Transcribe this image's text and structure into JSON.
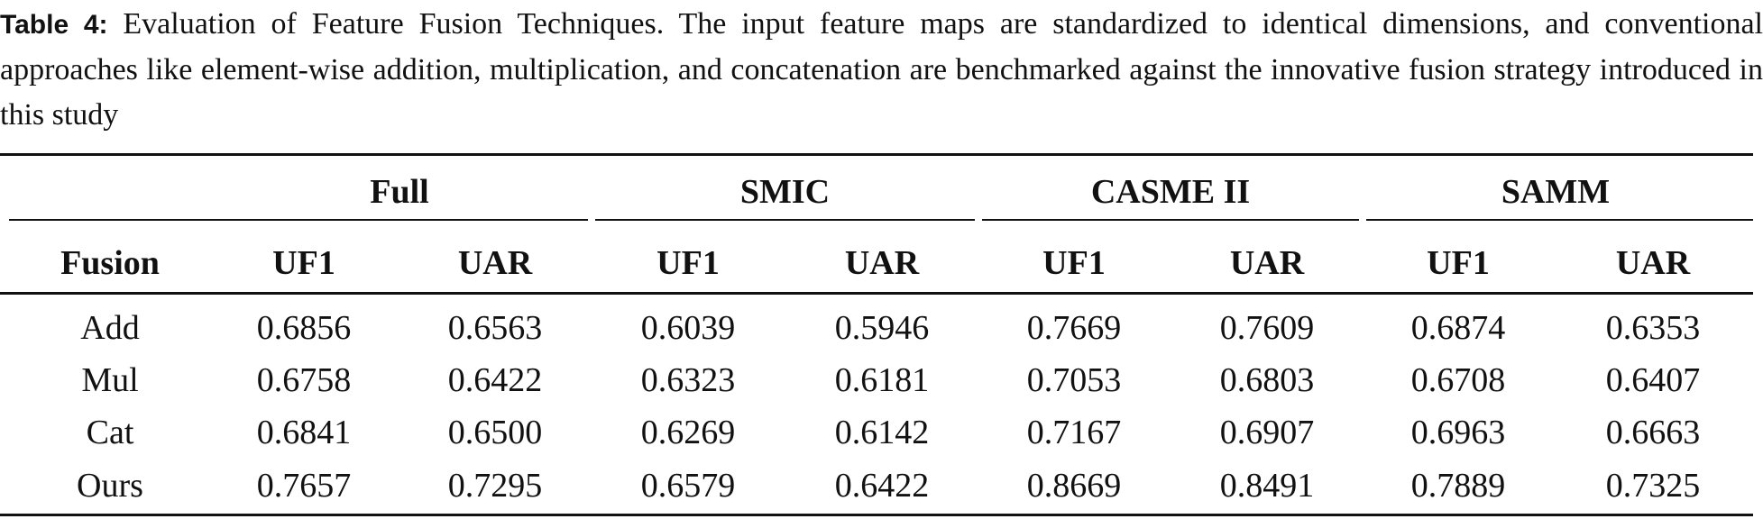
{
  "caption": {
    "label": "Table 4:",
    "text": "Evaluation of Feature Fusion Techniques. The input feature maps are standardized to identical dimensions, and conventional approaches like element-wise addition, multiplication, and concatenation are benchmarked against the innovative fusion strategy introduced in this study"
  },
  "table": {
    "groups": [
      "Full",
      "SMIC",
      "CASME II",
      "SAMM"
    ],
    "columns": [
      "Fusion",
      "UF1",
      "UAR",
      "UF1",
      "UAR",
      "UF1",
      "UAR",
      "UF1",
      "UAR"
    ],
    "rows": [
      [
        "Add",
        "0.6856",
        "0.6563",
        "0.6039",
        "0.5946",
        "0.7669",
        "0.7609",
        "0.6874",
        "0.6353"
      ],
      [
        "Mul",
        "0.6758",
        "0.6422",
        "0.6323",
        "0.6181",
        "0.7053",
        "0.6803",
        "0.6708",
        "0.6407"
      ],
      [
        "Cat",
        "0.6841",
        "0.6500",
        "0.6269",
        "0.6142",
        "0.7167",
        "0.6907",
        "0.6963",
        "0.6663"
      ],
      [
        "Ours",
        "0.7657",
        "0.7295",
        "0.6579",
        "0.6422",
        "0.8669",
        "0.8491",
        "0.7889",
        "0.7325"
      ]
    ]
  }
}
